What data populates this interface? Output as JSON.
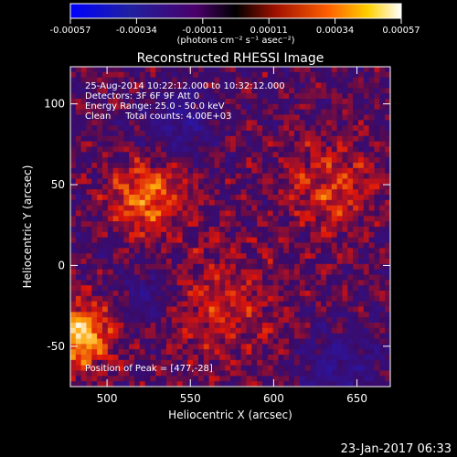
{
  "chart_data": {
    "type": "heatmap",
    "title": "Reconstructed RHESSI Image",
    "xlabel": "Heliocentric X (arcsec)",
    "ylabel": "Heliocentric Y (arcsec)",
    "xlim": [
      478,
      670
    ],
    "ylim": [
      -75,
      123
    ],
    "x_ticks": [
      "500",
      "550",
      "600",
      "650"
    ],
    "y_ticks": [
      "-50",
      "0",
      "50",
      "100"
    ],
    "colorbar": {
      "ticks": [
        "-0.00057",
        "-0.00034",
        "-0.00011",
        "0.00011",
        "0.00034",
        "0.00057"
      ],
      "unit_label": "(photons cm⁻² s⁻¹ asec⁻²)",
      "range": [
        -0.00057,
        0.00057
      ]
    },
    "annotations": [
      "25-Aug-2014 10:22:12.000 to 10:32:12.000",
      "Detectors: 3F 6F 9F Att 0",
      "Energy Range: 25.0 - 50.0 keV",
      "Clean     Total counts: 4.00E+03"
    ],
    "peak_label": "Position of Peak = [477,-28]",
    "peak": {
      "x": 477,
      "y": -28
    }
  },
  "footer": {
    "timestamp": "23-Jan-2017 06:33"
  }
}
